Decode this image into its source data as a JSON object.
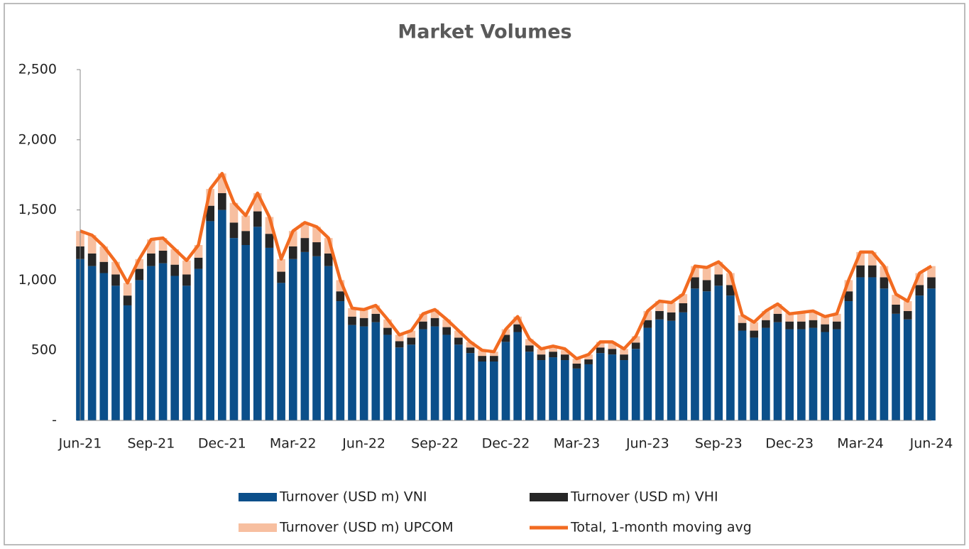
{
  "chart_data": {
    "type": "bar",
    "title": "Market Volumes",
    "categories": [
      "Jun-21",
      null,
      null,
      null,
      null,
      null,
      "Sep-21",
      null,
      null,
      null,
      null,
      null,
      "Dec-21",
      null,
      null,
      null,
      null,
      null,
      "Mar-22",
      null,
      null,
      null,
      null,
      null,
      "Jun-22",
      null,
      null,
      null,
      null,
      null,
      "Sep-22",
      null,
      null,
      null,
      null,
      null,
      "Dec-22",
      null,
      null,
      null,
      null,
      null,
      "Mar-23",
      null,
      null,
      null,
      null,
      null,
      "Jun-23",
      null,
      null,
      null,
      null,
      null,
      "Sep-23",
      null,
      null,
      null,
      null,
      null,
      "Dec-23",
      null,
      null,
      null,
      null,
      null,
      "Mar-24",
      null,
      null,
      null,
      null,
      null,
      "Jun-24"
    ],
    "stacked": true,
    "series": [
      {
        "name": "Turnover (USD m) VNI",
        "color": "#0b4f8a",
        "values": [
          1150,
          1100,
          1050,
          960,
          820,
          1000,
          1100,
          1120,
          1030,
          960,
          1080,
          1420,
          1500,
          1300,
          1250,
          1380,
          1230,
          980,
          1150,
          1200,
          1170,
          1100,
          850,
          680,
          670,
          700,
          610,
          520,
          540,
          650,
          670,
          610,
          540,
          480,
          420,
          420,
          560,
          630,
          490,
          430,
          450,
          430,
          370,
          400,
          480,
          470,
          430,
          510,
          660,
          720,
          710,
          770,
          940,
          920,
          960,
          890,
          640,
          590,
          660,
          700,
          650,
          650,
          660,
          630,
          650,
          850,
          1020,
          1020,
          940,
          760,
          720,
          890,
          940
        ]
      },
      {
        "name": "Turnover (USD m) VHI",
        "color": "#262626",
        "values": [
          90,
          90,
          80,
          80,
          70,
          80,
          90,
          90,
          80,
          80,
          80,
          110,
          120,
          110,
          100,
          110,
          100,
          80,
          90,
          100,
          100,
          90,
          70,
          60,
          60,
          60,
          50,
          45,
          50,
          55,
          60,
          55,
          50,
          40,
          40,
          40,
          50,
          55,
          45,
          40,
          40,
          40,
          35,
          35,
          40,
          40,
          40,
          45,
          55,
          60,
          60,
          65,
          80,
          80,
          80,
          75,
          55,
          50,
          55,
          60,
          55,
          55,
          55,
          55,
          55,
          70,
          85,
          85,
          80,
          65,
          60,
          75,
          80
        ]
      },
      {
        "name": "Turnover (USD m) UPCOM",
        "color": "#f7bfa0",
        "values": [
          110,
          130,
          110,
          90,
          90,
          70,
          100,
          90,
          110,
          100,
          90,
          120,
          140,
          140,
          110,
          130,
          120,
          90,
          110,
          110,
          110,
          110,
          80,
          60,
          60,
          60,
          60,
          45,
          50,
          55,
          60,
          55,
          50,
          40,
          40,
          30,
          40,
          55,
          45,
          40,
          40,
          30,
          35,
          35,
          40,
          50,
          40,
          45,
          65,
          70,
          70,
          65,
          80,
          90,
          90,
          85,
          55,
          60,
          65,
          70,
          60,
          65,
          65,
          55,
          55,
          80,
          95,
          95,
          80,
          70,
          70,
          85,
          80
        ]
      },
      {
        "name": "Total, 1-month moving avg",
        "color": "#f26b21",
        "type": "line",
        "values": [
          1350,
          1320,
          1240,
          1130,
          980,
          1150,
          1290,
          1300,
          1220,
          1140,
          1250,
          1650,
          1760,
          1550,
          1460,
          1620,
          1450,
          1150,
          1350,
          1410,
          1380,
          1300,
          1000,
          800,
          790,
          820,
          720,
          610,
          640,
          760,
          790,
          720,
          640,
          560,
          500,
          490,
          650,
          740,
          580,
          510,
          530,
          510,
          440,
          470,
          560,
          560,
          510,
          600,
          780,
          850,
          840,
          900,
          1100,
          1090,
          1130,
          1050,
          750,
          700,
          780,
          830,
          760,
          770,
          780,
          740,
          760,
          1000,
          1200,
          1200,
          1100,
          900,
          850,
          1050,
          1100
        ]
      }
    ],
    "ylim": [
      0,
      2500
    ],
    "yticks": [
      {
        "value": 0,
        "label": "-"
      },
      500,
      {
        "value": 1000,
        "label": "1,000"
      },
      {
        "value": 1500,
        "label": "1,500"
      },
      {
        "value": 2000,
        "label": "2,000"
      },
      {
        "value": 2500,
        "label": "2,500"
      }
    ]
  }
}
